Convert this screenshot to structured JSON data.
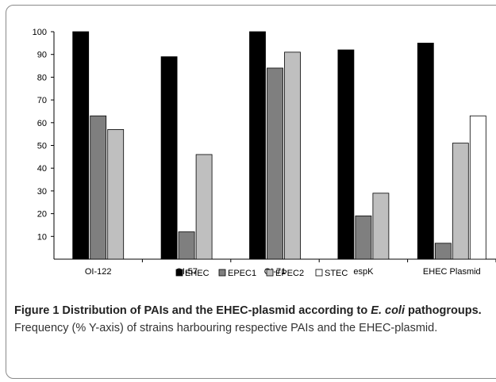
{
  "chart_data": {
    "type": "bar",
    "categories": [
      "OI-122",
      "OI-57",
      "OI-71",
      "espK",
      "EHEC Plasmid"
    ],
    "series": [
      {
        "name": "EHEC",
        "values": [
          100,
          89,
          100,
          92,
          95
        ]
      },
      {
        "name": "EPEC1",
        "values": [
          63,
          12,
          84,
          19,
          7
        ]
      },
      {
        "name": "EPEC2",
        "values": [
          57,
          46,
          91,
          29,
          51
        ]
      },
      {
        "name": "STEC",
        "values": [
          0,
          0,
          0,
          0,
          63
        ]
      }
    ],
    "yticks": [
      10,
      20,
      30,
      40,
      50,
      60,
      70,
      80,
      90,
      100
    ],
    "ylim": [
      0,
      100
    ],
    "grid": false,
    "legend_position": "bottom",
    "colors": {
      "EHEC": "#000000",
      "EPEC1": "#7f7f7f",
      "EPEC2": "#bfbfbf",
      "STEC": "#ffffff"
    }
  },
  "caption": {
    "bold_part1": "Figure 1 Distribution of PAIs and the EHEC-plasmid according to ",
    "italic": "E. coli",
    "bold_part2": " pathogroups.",
    "normal": " Frequency (% Y-axis) of strains harbouring respective PAIs and the EHEC-plasmid."
  }
}
